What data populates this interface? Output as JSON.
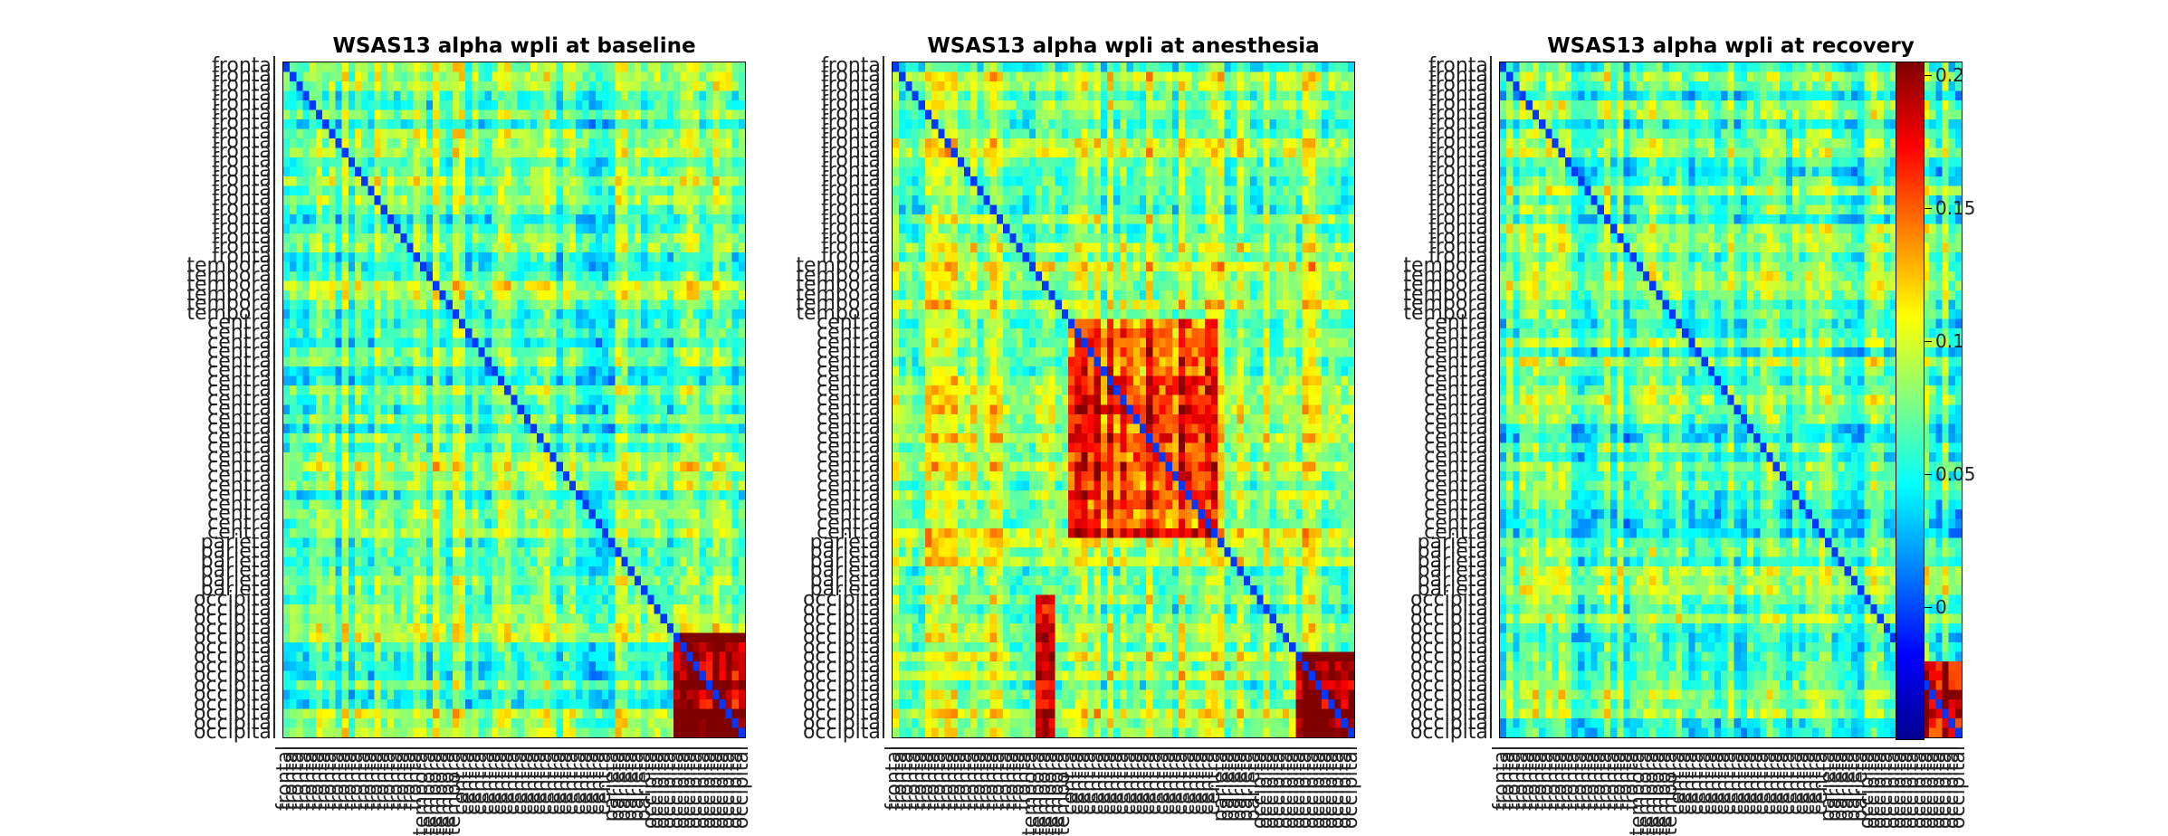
{
  "chart_data": [
    {
      "type": "heatmap",
      "title": "WSAS13 alpha wpli at baseline",
      "regions": [
        "frontal",
        "temporal",
        "central",
        "parietal",
        "occipital"
      ],
      "region_counts": [
        21,
        6,
        23,
        6,
        15
      ],
      "clim": [
        -0.05,
        0.2
      ],
      "colormap": "jet",
      "hot_blocks": [
        {
          "rows": "parietal-occipital",
          "cols": "parietal-occipital",
          "level": "high"
        }
      ]
    },
    {
      "type": "heatmap",
      "title": "WSAS13 alpha wpli at anesthesia",
      "regions": [
        "frontal",
        "temporal",
        "central",
        "parietal",
        "occipital"
      ],
      "region_counts": [
        21,
        6,
        23,
        6,
        15
      ],
      "clim": [
        -0.05,
        0.2
      ],
      "colormap": "jet",
      "hot_blocks": [
        {
          "rows": "central",
          "cols": "central",
          "level": "high"
        },
        {
          "rows": "occipital",
          "cols": "occipital",
          "level": "high"
        }
      ]
    },
    {
      "type": "heatmap",
      "title": "WSAS13 alpha wpli at recovery",
      "regions": [
        "frontal",
        "temporal",
        "central",
        "parietal",
        "occipital"
      ],
      "region_counts": [
        21,
        6,
        23,
        6,
        15
      ],
      "clim": [
        -0.05,
        0.2
      ],
      "colormap": "jet",
      "hot_blocks": [
        {
          "rows": "occipital",
          "cols": "occipital",
          "level": "high"
        }
      ]
    }
  ],
  "colorbar": {
    "ticks": [
      {
        "value": 0.2,
        "label": "0.2"
      },
      {
        "value": 0.15,
        "label": "0.15"
      },
      {
        "value": 0.1,
        "label": "0.1"
      },
      {
        "value": 0.05,
        "label": "0.05"
      },
      {
        "value": 0,
        "label": "0"
      }
    ],
    "range": [
      -0.05,
      0.205
    ]
  }
}
